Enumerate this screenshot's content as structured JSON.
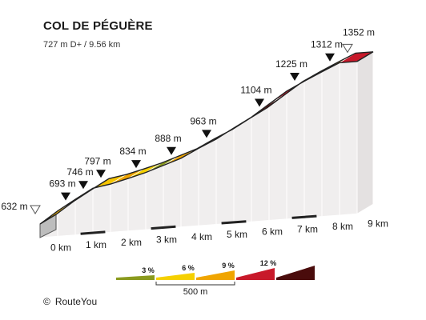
{
  "chart_data": {
    "type": "area",
    "title": "COL DE PÉGUÈRE",
    "subtitle": "727 m D+ / 9.56 km",
    "xlabel": "",
    "ylabel": "",
    "x_ticks": [
      "0 km",
      "1 km",
      "2 km",
      "3 km",
      "4 km",
      "5 km",
      "6 km",
      "7 km",
      "8 km",
      "9 km"
    ],
    "summits": [
      {
        "x_km": 0,
        "label": "632 m",
        "elevation": 632,
        "marker": "open"
      },
      {
        "x_km": 0.5,
        "label": "693 m",
        "elevation": 693,
        "marker": "filled"
      },
      {
        "x_km": 1.0,
        "label": "746 m",
        "elevation": 746,
        "marker": "filled"
      },
      {
        "x_km": 1.5,
        "label": "797 m",
        "elevation": 797,
        "marker": "filled"
      },
      {
        "x_km": 2.5,
        "label": "834 m",
        "elevation": 834,
        "marker": "filled"
      },
      {
        "x_km": 3.5,
        "label": "888 m",
        "elevation": 888,
        "marker": "filled"
      },
      {
        "x_km": 4.5,
        "label": "963 m",
        "elevation": 963,
        "marker": "filled"
      },
      {
        "x_km": 6.0,
        "label": "1104 m",
        "elevation": 1104,
        "marker": "filled"
      },
      {
        "x_km": 7.0,
        "label": "1225 m",
        "elevation": 1225,
        "marker": "filled"
      },
      {
        "x_km": 8.0,
        "label": "1312 m",
        "elevation": 1312,
        "marker": "filled"
      },
      {
        "x_km": 8.5,
        "label": "1352 m",
        "elevation": 1352,
        "marker": "open"
      }
    ],
    "segments": [
      {
        "from_km": 0.0,
        "to_km": 0.5,
        "color": "#f5b800"
      },
      {
        "from_km": 0.5,
        "to_km": 1.0,
        "color": "#f0a500"
      },
      {
        "from_km": 1.0,
        "to_km": 1.5,
        "color": "#f5c400"
      },
      {
        "from_km": 1.5,
        "to_km": 2.0,
        "color": "#f5c400"
      },
      {
        "from_km": 2.0,
        "to_km": 2.5,
        "color": "#f0a500"
      },
      {
        "from_km": 2.5,
        "to_km": 3.0,
        "color": "#f5d000"
      },
      {
        "from_km": 3.0,
        "to_km": 3.5,
        "color": "#8a9a1e"
      },
      {
        "from_km": 3.5,
        "to_km": 4.0,
        "color": "#f0a500"
      },
      {
        "from_km": 4.0,
        "to_km": 4.5,
        "color": "#f5c400"
      },
      {
        "from_km": 4.5,
        "to_km": 5.0,
        "color": "#f0a500"
      },
      {
        "from_km": 5.0,
        "to_km": 5.5,
        "color": "#f5b000"
      },
      {
        "from_km": 5.5,
        "to_km": 6.0,
        "color": "#4a0c0c"
      },
      {
        "from_km": 6.0,
        "to_km": 6.5,
        "color": "#5a1010"
      },
      {
        "from_km": 6.5,
        "to_km": 7.0,
        "color": "#c8192a"
      },
      {
        "from_km": 7.0,
        "to_km": 7.5,
        "color": "#4a0c0c"
      },
      {
        "from_km": 7.5,
        "to_km": 8.0,
        "color": "#c8192a"
      },
      {
        "from_km": 8.0,
        "to_km": 8.5,
        "color": "#f0a500"
      },
      {
        "from_km": 8.5,
        "to_km": 9.0,
        "color": "#c8192a"
      }
    ],
    "legend": {
      "items": [
        {
          "label": "3 %",
          "color": "#8a9a1e"
        },
        {
          "label": "6 %",
          "color": "#f5d000"
        },
        {
          "label": "9 %",
          "color": "#f0a500"
        },
        {
          "label": "12 %",
          "color": "#c8192a"
        },
        {
          "label": "",
          "color": "#4a0c0c"
        }
      ],
      "scale_label": "500 m"
    }
  },
  "credit": {
    "symbol": "©",
    "text": "RouteYou"
  },
  "colors": {
    "side": "#f0eeee",
    "side_line": "#c8c4c4",
    "top_outline": "#222222",
    "front_face": "#bdbdbd"
  }
}
